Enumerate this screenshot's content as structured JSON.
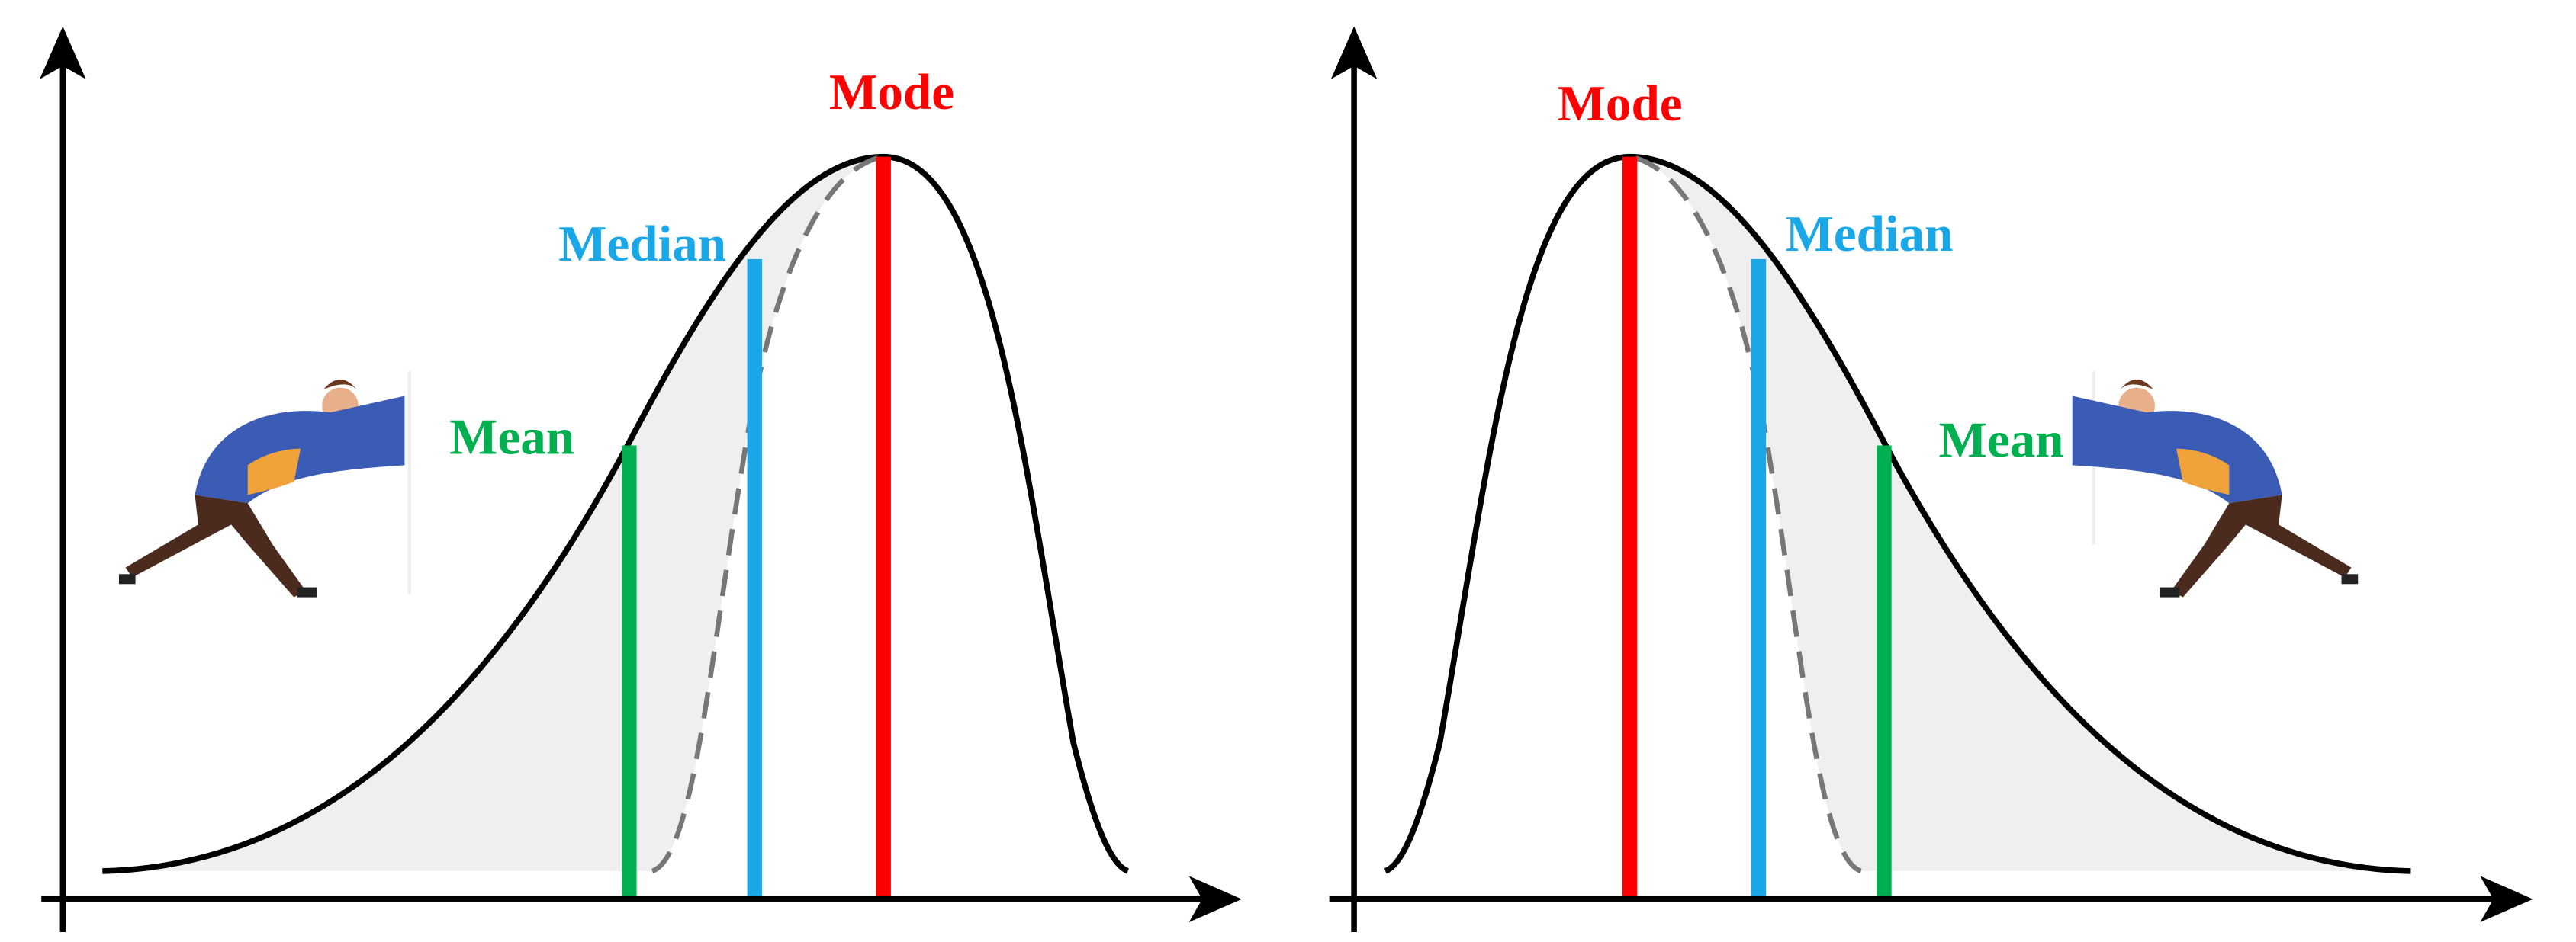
{
  "left": {
    "mode": "Mode",
    "median": "Median",
    "mean": "Mean"
  },
  "right": {
    "mode": "Mode",
    "median": "Median",
    "mean": "Mean"
  }
}
